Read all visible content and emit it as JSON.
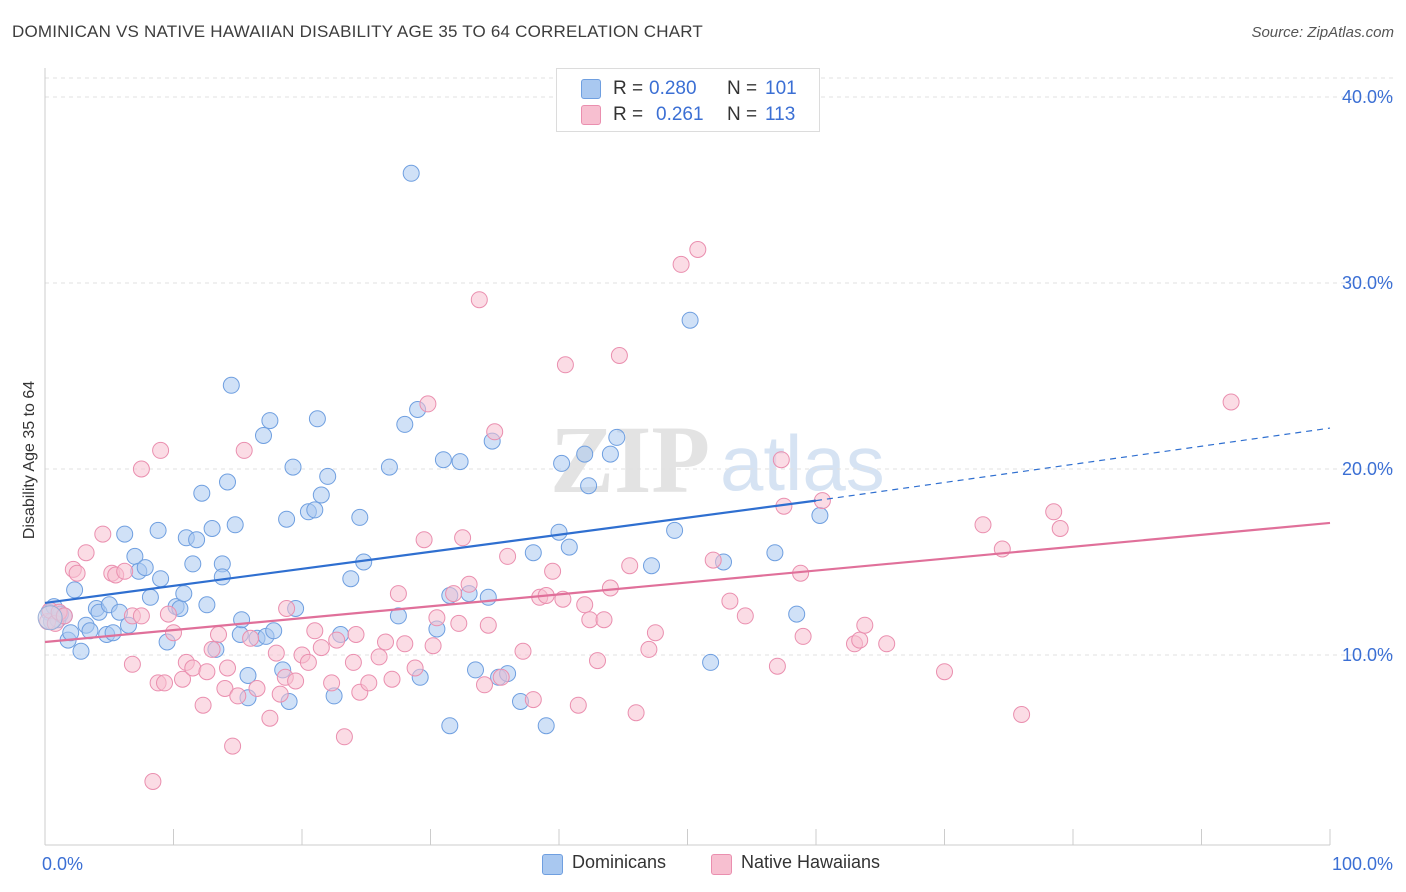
{
  "title": "DOMINICAN VS NATIVE HAWAIIAN DISABILITY AGE 35 TO 64 CORRELATION CHART",
  "source": "Source: ZipAtlas.com",
  "watermark": {
    "zip": "ZIP",
    "atlas": "atlas"
  },
  "stats": [
    {
      "r_label": "R =",
      "r_value": "0.280",
      "n_label": "N =",
      "n_value": "101",
      "color": "#a9c8f0",
      "border": "#6f9fe0"
    },
    {
      "r_label": "R =",
      "r_value": "0.261",
      "n_label": "N =",
      "n_value": "113",
      "color": "#f7bfd0",
      "border": "#ea8faf"
    }
  ],
  "legend": [
    {
      "label": "Dominicans",
      "color": "#a9c8f0",
      "border": "#6f9fe0"
    },
    {
      "label": "Native Hawaiians",
      "color": "#f7bfd0",
      "border": "#ea8faf"
    }
  ],
  "chart_data": {
    "type": "scatter",
    "title": "DOMINICAN VS NATIVE HAWAIIAN DISABILITY AGE 35 TO 64 CORRELATION CHART",
    "xlabel": "",
    "ylabel": "Disability Age 35 to 64",
    "xlim": [
      0,
      100
    ],
    "ylim": [
      0,
      40
    ],
    "x_tick_labels": [
      "0.0%",
      "100.0%"
    ],
    "y_ticks": [
      10,
      20,
      30,
      40
    ],
    "y_tick_labels": [
      "10.0%",
      "20.0%",
      "30.0%",
      "40.0%"
    ],
    "grid": true,
    "legend_position": "bottom",
    "series": [
      {
        "name": "Dominicans",
        "color": "#6f9fe0",
        "fill": "#a9c8f0",
        "trend": {
          "x": [
            0,
            60
          ],
          "y": [
            12.8,
            18.3
          ],
          "dashed_to": [
            100,
            22.2
          ],
          "color": "#2f6fd0"
        },
        "points": [
          [
            0.3,
            12.3
          ],
          [
            0.5,
            11.8
          ],
          [
            0.7,
            12.6
          ],
          [
            1.0,
            11.9
          ],
          [
            1.2,
            12.2
          ],
          [
            1.5,
            12.1
          ],
          [
            1.8,
            10.8
          ],
          [
            2.0,
            11.2
          ],
          [
            2.3,
            13.5
          ],
          [
            2.8,
            10.2
          ],
          [
            3.2,
            11.6
          ],
          [
            3.5,
            11.3
          ],
          [
            4.0,
            12.5
          ],
          [
            4.2,
            12.3
          ],
          [
            4.8,
            11.1
          ],
          [
            5.0,
            12.7
          ],
          [
            5.3,
            11.2
          ],
          [
            5.8,
            12.3
          ],
          [
            6.2,
            16.5
          ],
          [
            6.5,
            11.6
          ],
          [
            7.0,
            15.3
          ],
          [
            7.3,
            14.5
          ],
          [
            7.8,
            14.7
          ],
          [
            8.2,
            13.1
          ],
          [
            8.8,
            16.7
          ],
          [
            9.0,
            14.1
          ],
          [
            9.5,
            10.7
          ],
          [
            10.2,
            12.6
          ],
          [
            10.5,
            12.5
          ],
          [
            10.8,
            13.3
          ],
          [
            11.0,
            16.3
          ],
          [
            11.5,
            14.9
          ],
          [
            11.8,
            16.2
          ],
          [
            12.2,
            18.7
          ],
          [
            12.6,
            12.7
          ],
          [
            13.0,
            16.8
          ],
          [
            13.3,
            10.3
          ],
          [
            13.8,
            14.9
          ],
          [
            13.8,
            14.2
          ],
          [
            14.2,
            19.3
          ],
          [
            14.5,
            24.5
          ],
          [
            14.8,
            17.0
          ],
          [
            15.2,
            11.1
          ],
          [
            15.3,
            11.9
          ],
          [
            15.8,
            8.9
          ],
          [
            15.8,
            7.7
          ],
          [
            16.5,
            10.9
          ],
          [
            17.0,
            21.8
          ],
          [
            17.2,
            11.0
          ],
          [
            17.5,
            22.6
          ],
          [
            17.8,
            11.3
          ],
          [
            18.5,
            9.2
          ],
          [
            18.8,
            17.3
          ],
          [
            19.0,
            7.5
          ],
          [
            19.3,
            20.1
          ],
          [
            19.5,
            12.5
          ],
          [
            20.5,
            17.7
          ],
          [
            21.0,
            17.8
          ],
          [
            21.2,
            22.7
          ],
          [
            21.5,
            18.6
          ],
          [
            22.0,
            19.6
          ],
          [
            22.5,
            7.8
          ],
          [
            23.0,
            11.1
          ],
          [
            23.8,
            14.1
          ],
          [
            24.5,
            17.4
          ],
          [
            24.8,
            15.0
          ],
          [
            26.8,
            20.1
          ],
          [
            27.5,
            12.1
          ],
          [
            28.0,
            22.4
          ],
          [
            28.5,
            35.9
          ],
          [
            29.0,
            23.2
          ],
          [
            29.2,
            8.8
          ],
          [
            30.5,
            11.4
          ],
          [
            31.0,
            20.5
          ],
          [
            31.5,
            6.2
          ],
          [
            31.5,
            13.2
          ],
          [
            32.3,
            20.4
          ],
          [
            33.0,
            13.3
          ],
          [
            33.5,
            9.2
          ],
          [
            34.5,
            13.1
          ],
          [
            34.8,
            21.5
          ],
          [
            35.3,
            8.8
          ],
          [
            37.0,
            7.5
          ],
          [
            38.0,
            15.5
          ],
          [
            39.0,
            6.2
          ],
          [
            40.0,
            16.6
          ],
          [
            40.2,
            20.3
          ],
          [
            40.8,
            15.8
          ],
          [
            42.0,
            20.8
          ],
          [
            42.3,
            19.1
          ],
          [
            44.0,
            20.8
          ],
          [
            44.5,
            21.7
          ],
          [
            47.2,
            14.8
          ],
          [
            49.0,
            16.7
          ],
          [
            50.2,
            28.0
          ],
          [
            51.8,
            9.6
          ],
          [
            52.8,
            15.0
          ],
          [
            56.8,
            15.5
          ],
          [
            58.5,
            12.2
          ],
          [
            60.3,
            17.5
          ],
          [
            36.0,
            9.0
          ]
        ]
      },
      {
        "name": "Native Hawaiians",
        "color": "#ea8faf",
        "fill": "#f7bfd0",
        "trend": {
          "x": [
            0,
            100
          ],
          "y": [
            10.7,
            17.1
          ],
          "color": "#e0709a"
        },
        "points": [
          [
            0.2,
            11.8
          ],
          [
            0.4,
            12.4
          ],
          [
            0.8,
            11.7
          ],
          [
            1.1,
            12.3
          ],
          [
            1.5,
            12.1
          ],
          [
            2.2,
            14.6
          ],
          [
            2.5,
            14.4
          ],
          [
            3.2,
            15.5
          ],
          [
            4.5,
            16.5
          ],
          [
            5.2,
            14.4
          ],
          [
            5.5,
            14.3
          ],
          [
            6.2,
            14.5
          ],
          [
            6.8,
            12.1
          ],
          [
            6.8,
            9.5
          ],
          [
            7.5,
            12.1
          ],
          [
            7.5,
            20.0
          ],
          [
            8.4,
            3.2
          ],
          [
            8.8,
            8.5
          ],
          [
            9.0,
            21.0
          ],
          [
            9.3,
            8.5
          ],
          [
            9.6,
            12.2
          ],
          [
            10.0,
            11.2
          ],
          [
            10.7,
            8.7
          ],
          [
            11.0,
            9.6
          ],
          [
            11.5,
            9.3
          ],
          [
            12.3,
            7.3
          ],
          [
            12.6,
            9.1
          ],
          [
            13.0,
            10.3
          ],
          [
            13.5,
            11.1
          ],
          [
            14.0,
            8.2
          ],
          [
            14.2,
            9.3
          ],
          [
            14.6,
            5.1
          ],
          [
            15.0,
            7.8
          ],
          [
            15.5,
            21.0
          ],
          [
            16.0,
            10.9
          ],
          [
            16.5,
            8.2
          ],
          [
            17.5,
            6.6
          ],
          [
            18.0,
            10.1
          ],
          [
            18.3,
            7.9
          ],
          [
            18.7,
            8.8
          ],
          [
            19.5,
            8.6
          ],
          [
            20.0,
            10.0
          ],
          [
            20.5,
            9.6
          ],
          [
            21.0,
            11.3
          ],
          [
            21.5,
            10.4
          ],
          [
            22.3,
            8.5
          ],
          [
            22.7,
            10.8
          ],
          [
            23.3,
            5.6
          ],
          [
            24.0,
            9.6
          ],
          [
            24.2,
            11.1
          ],
          [
            24.5,
            8.0
          ],
          [
            25.2,
            8.5
          ],
          [
            26.0,
            9.9
          ],
          [
            26.5,
            10.7
          ],
          [
            27.0,
            8.7
          ],
          [
            27.5,
            13.3
          ],
          [
            28.0,
            10.6
          ],
          [
            28.8,
            9.3
          ],
          [
            29.5,
            16.2
          ],
          [
            30.2,
            10.5
          ],
          [
            30.5,
            12.0
          ],
          [
            31.8,
            13.3
          ],
          [
            32.2,
            11.7
          ],
          [
            32.5,
            16.3
          ],
          [
            33.0,
            13.8
          ],
          [
            33.8,
            29.1
          ],
          [
            34.2,
            8.4
          ],
          [
            34.5,
            11.6
          ],
          [
            35.0,
            22.0
          ],
          [
            35.5,
            8.8
          ],
          [
            36.0,
            15.3
          ],
          [
            37.2,
            10.2
          ],
          [
            38.0,
            7.6
          ],
          [
            38.5,
            13.1
          ],
          [
            39.0,
            13.2
          ],
          [
            39.5,
            14.5
          ],
          [
            40.5,
            25.6
          ],
          [
            41.5,
            7.3
          ],
          [
            42.0,
            12.7
          ],
          [
            42.4,
            11.9
          ],
          [
            43.0,
            9.7
          ],
          [
            43.5,
            11.9
          ],
          [
            44.0,
            13.6
          ],
          [
            44.7,
            26.1
          ],
          [
            45.5,
            14.8
          ],
          [
            46.0,
            6.9
          ],
          [
            47.0,
            10.3
          ],
          [
            47.5,
            11.2
          ],
          [
            49.5,
            31.0
          ],
          [
            50.8,
            31.8
          ],
          [
            52.0,
            15.1
          ],
          [
            53.3,
            12.9
          ],
          [
            54.5,
            12.1
          ],
          [
            57.0,
            9.4
          ],
          [
            57.3,
            20.5
          ],
          [
            57.5,
            18.0
          ],
          [
            58.8,
            14.4
          ],
          [
            59.0,
            11.0
          ],
          [
            60.5,
            18.3
          ],
          [
            63.0,
            10.6
          ],
          [
            63.4,
            10.8
          ],
          [
            63.8,
            11.6
          ],
          [
            65.5,
            10.6
          ],
          [
            70.0,
            9.1
          ],
          [
            73.0,
            17.0
          ],
          [
            74.5,
            15.7
          ],
          [
            76.0,
            6.8
          ],
          [
            78.5,
            17.7
          ],
          [
            79.0,
            16.8
          ],
          [
            92.3,
            23.6
          ],
          [
            29.8,
            23.5
          ],
          [
            40.3,
            13.0
          ],
          [
            18.8,
            12.5
          ]
        ]
      }
    ]
  }
}
